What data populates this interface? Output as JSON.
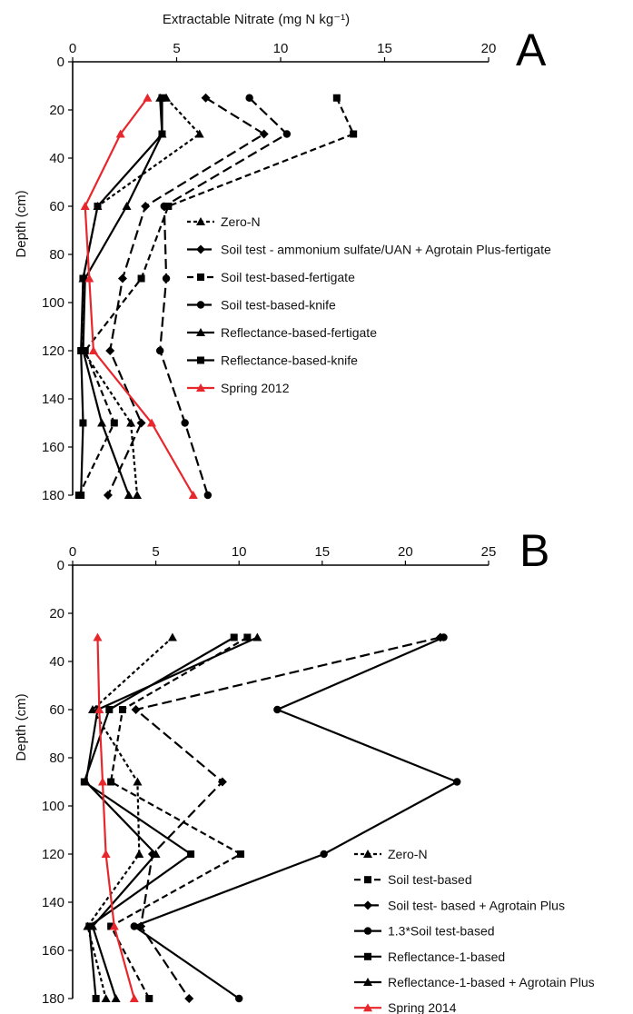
{
  "chart_data": [
    {
      "type": "line",
      "panel": "A",
      "xlabel": "Extractable Nitrate (mg N kg⁻¹)",
      "ylabel": "Depth (cm)",
      "xlim": [
        0,
        20
      ],
      "ylim": [
        0,
        180
      ],
      "xticks": [
        "0",
        "5",
        "10",
        "15",
        "20"
      ],
      "yticks": [
        "0",
        "20",
        "40",
        "60",
        "80",
        "100",
        "120",
        "140",
        "160",
        "180"
      ],
      "x_axis_position": "top",
      "y_inverted": true,
      "grid": false,
      "legend_position": "center-right",
      "series": [
        {
          "name": "Zero-N",
          "color": "#000000",
          "dash": "short-dash",
          "marker": "triangle",
          "points": [
            [
              4.5,
              15
            ],
            [
              6.1,
              30
            ],
            [
              1.2,
              60
            ],
            [
              0.5,
              90
            ],
            [
              0.5,
              120
            ],
            [
              2.8,
              150
            ],
            [
              3.1,
              180
            ]
          ]
        },
        {
          "name": "Soil test - ammonium sulfate/UAN + Agrotain Plus-fertigate",
          "color": "#000000",
          "dash": "long-dash",
          "marker": "diamond",
          "points": [
            [
              6.4,
              15
            ],
            [
              9.2,
              30
            ],
            [
              3.5,
              60
            ],
            [
              2.4,
              90
            ],
            [
              1.8,
              120
            ],
            [
              3.3,
              150
            ],
            [
              1.7,
              180
            ]
          ]
        },
        {
          "name": "Soil test-based-fertigate",
          "color": "#000000",
          "dash": "dash",
          "marker": "square",
          "points": [
            [
              12.7,
              15
            ],
            [
              13.5,
              30
            ],
            [
              4.6,
              60
            ],
            [
              3.3,
              90
            ],
            [
              0.6,
              120
            ],
            [
              2.0,
              150
            ],
            [
              0.3,
              180
            ]
          ]
        },
        {
          "name": "Soil test-based-knife",
          "color": "#000000",
          "dash": "long-dash",
          "marker": "circle",
          "points": [
            [
              8.5,
              15
            ],
            [
              10.3,
              30
            ],
            [
              4.4,
              60
            ],
            [
              4.5,
              90
            ],
            [
              4.2,
              120
            ],
            [
              5.4,
              150
            ],
            [
              6.5,
              180
            ]
          ]
        },
        {
          "name": "Reflectance-based-fertigate",
          "color": "#000000",
          "dash": "solid",
          "marker": "triangle",
          "points": [
            [
              4.2,
              15
            ],
            [
              4.3,
              30
            ],
            [
              2.6,
              60
            ],
            [
              0.6,
              90
            ],
            [
              0.5,
              120
            ],
            [
              1.4,
              150
            ],
            [
              2.7,
              180
            ]
          ]
        },
        {
          "name": "Reflectance-based-knife",
          "color": "#000000",
          "dash": "solid",
          "marker": "square",
          "points": [
            [
              4.3,
              15
            ],
            [
              4.3,
              30
            ],
            [
              1.2,
              60
            ],
            [
              0.5,
              90
            ],
            [
              0.4,
              120
            ],
            [
              0.5,
              150
            ],
            [
              0.4,
              180
            ]
          ]
        },
        {
          "name": "Spring 2012",
          "color": "#e8272d",
          "dash": "solid",
          "marker": "triangle",
          "points": [
            [
              3.6,
              15
            ],
            [
              2.3,
              30
            ],
            [
              0.6,
              60
            ],
            [
              0.8,
              90
            ],
            [
              1.0,
              120
            ],
            [
              3.8,
              150
            ],
            [
              5.8,
              180
            ]
          ]
        }
      ]
    },
    {
      "type": "line",
      "panel": "B",
      "xlabel": "",
      "ylabel": "Depth (cm)",
      "xlim": [
        0,
        25
      ],
      "ylim": [
        0,
        180
      ],
      "xticks": [
        "0",
        "5",
        "10",
        "15",
        "20",
        "25"
      ],
      "yticks": [
        "0",
        "20",
        "40",
        "60",
        "80",
        "100",
        "120",
        "140",
        "160",
        "180"
      ],
      "x_axis_position": "top",
      "y_inverted": true,
      "grid": false,
      "legend_position": "bottom-right",
      "series": [
        {
          "name": "Zero-N",
          "color": "#000000",
          "dash": "short-dash",
          "marker": "triangle",
          "points": [
            [
              6.0,
              30
            ],
            [
              1.2,
              60
            ],
            [
              3.9,
              90
            ],
            [
              4.0,
              120
            ],
            [
              0.9,
              150
            ],
            [
              2.0,
              180
            ]
          ]
        },
        {
          "name": "Soil test-based",
          "color": "#000000",
          "dash": "dash",
          "marker": "square",
          "points": [
            [
              10.5,
              30
            ],
            [
              3.0,
              60
            ],
            [
              2.3,
              90
            ],
            [
              10.1,
              120
            ],
            [
              2.3,
              150
            ],
            [
              4.6,
              180
            ]
          ]
        },
        {
          "name": "Soil test- based + Agrotain Plus",
          "color": "#000000",
          "dash": "long-dash",
          "marker": "diamond",
          "points": [
            [
              22.1,
              30
            ],
            [
              3.8,
              60
            ],
            [
              9.0,
              90
            ],
            [
              4.8,
              120
            ],
            [
              4.1,
              150
            ],
            [
              7.0,
              180
            ]
          ]
        },
        {
          "name": "1.3*Soil test-based",
          "color": "#000000",
          "dash": "solid",
          "marker": "circle",
          "points": [
            [
              22.3,
              30
            ],
            [
              12.3,
              60
            ],
            [
              23.1,
              90
            ],
            [
              15.1,
              120
            ],
            [
              3.7,
              150
            ],
            [
              10.0,
              180
            ]
          ]
        },
        {
          "name": "Reflectance-1-based",
          "color": "#000000",
          "dash": "solid",
          "marker": "square",
          "points": [
            [
              9.7,
              30
            ],
            [
              2.2,
              60
            ],
            [
              0.7,
              90
            ],
            [
              7.1,
              120
            ],
            [
              1.0,
              150
            ],
            [
              1.4,
              180
            ]
          ]
        },
        {
          "name": "Reflectance-1-based + Agrotain Plus",
          "color": "#000000",
          "dash": "solid",
          "marker": "triangle",
          "points": [
            [
              11.1,
              30
            ],
            [
              1.5,
              60
            ],
            [
              0.8,
              90
            ],
            [
              5.0,
              120
            ],
            [
              1.2,
              150
            ],
            [
              2.6,
              180
            ]
          ]
        },
        {
          "name": "Spring 2014",
          "color": "#e8272d",
          "dash": "solid",
          "marker": "triangle",
          "points": [
            [
              1.5,
              30
            ],
            [
              1.6,
              60
            ],
            [
              1.8,
              90
            ],
            [
              2.0,
              120
            ],
            [
              2.5,
              150
            ],
            [
              3.7,
              180
            ]
          ]
        }
      ]
    }
  ]
}
